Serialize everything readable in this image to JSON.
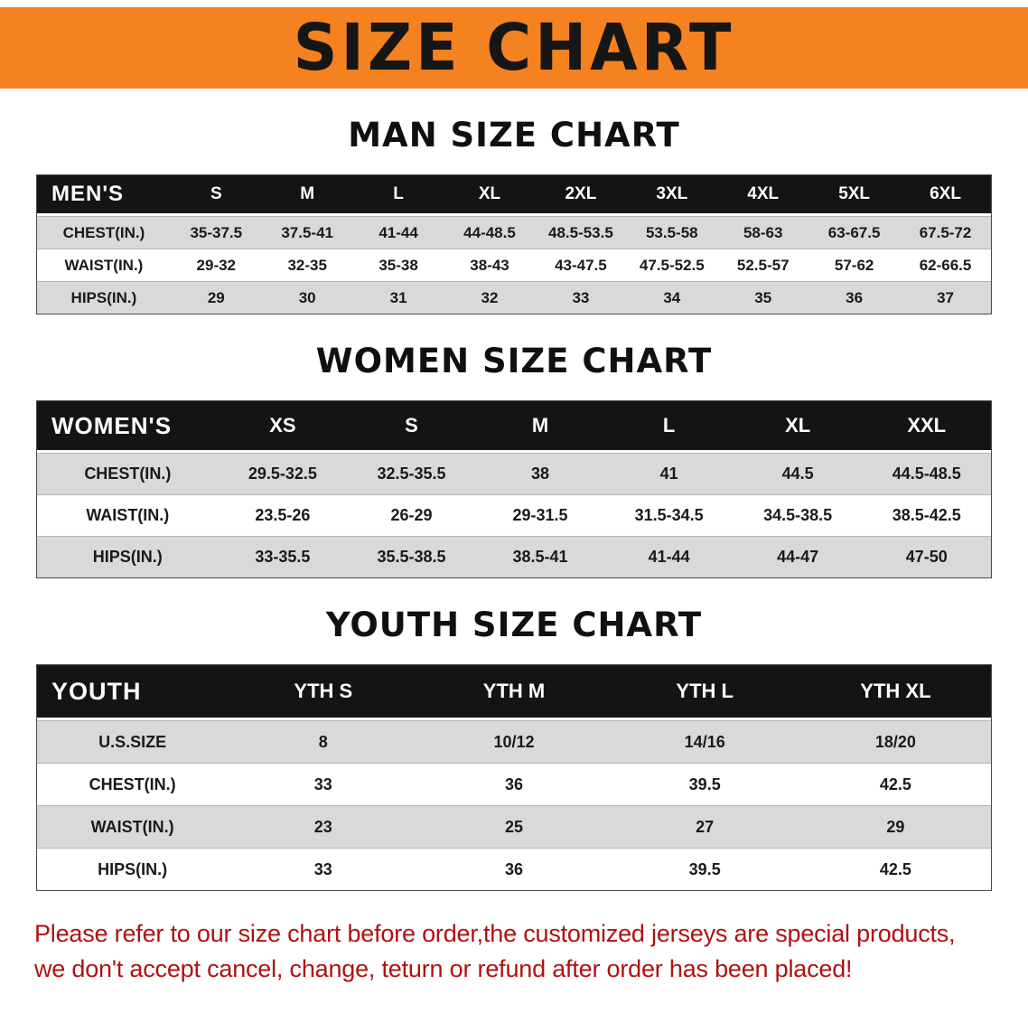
{
  "colors": {
    "banner-orange": "#f58220",
    "banner-text": "#161616",
    "header-bar": "#141414",
    "row-gray": "#d9d9d9",
    "note-red": "#b01111"
  },
  "banner": {
    "title": "SIZE CHART"
  },
  "sections": {
    "men_heading": "MAN SIZE CHART",
    "women_heading": "WOMEN SIZE CHART",
    "youth_heading": "YOUTH SIZE CHART"
  },
  "men_table": {
    "header_label": "MEN'S",
    "columns": [
      "S",
      "M",
      "L",
      "XL",
      "2XL",
      "3XL",
      "4XL",
      "5XL",
      "6XL"
    ],
    "rows": [
      {
        "label": "CHEST(IN.)",
        "values": [
          "35-37.5",
          "37.5-41",
          "41-44",
          "44-48.5",
          "48.5-53.5",
          "53.5-58",
          "58-63",
          "63-67.5",
          "67.5-72"
        ]
      },
      {
        "label": "WAIST(IN.)",
        "values": [
          "29-32",
          "32-35",
          "35-38",
          "38-43",
          "43-47.5",
          "47.5-52.5",
          "52.5-57",
          "57-62",
          "62-66.5"
        ]
      },
      {
        "label": "HIPS(IN.)",
        "values": [
          "29",
          "30",
          "31",
          "32",
          "33",
          "34",
          "35",
          "36",
          "37"
        ]
      }
    ]
  },
  "women_table": {
    "header_label": "WOMEN'S",
    "columns": [
      "XS",
      "S",
      "M",
      "L",
      "XL",
      "XXL"
    ],
    "rows": [
      {
        "label": "CHEST(IN.)",
        "values": [
          "29.5-32.5",
          "32.5-35.5",
          "38",
          "41",
          "44.5",
          "44.5-48.5"
        ]
      },
      {
        "label": "WAIST(IN.)",
        "values": [
          "23.5-26",
          "26-29",
          "29-31.5",
          "31.5-34.5",
          "34.5-38.5",
          "38.5-42.5"
        ]
      },
      {
        "label": "HIPS(IN.)",
        "values": [
          "33-35.5",
          "35.5-38.5",
          "38.5-41",
          "41-44",
          "44-47",
          "47-50"
        ]
      }
    ]
  },
  "youth_table": {
    "header_label": "YOUTH",
    "columns": [
      "YTH S",
      "YTH M",
      "YTH L",
      "YTH XL"
    ],
    "rows": [
      {
        "label": "U.S.SIZE",
        "values": [
          "8",
          "10/12",
          "14/16",
          "18/20"
        ]
      },
      {
        "label": "CHEST(IN.)",
        "values": [
          "33",
          "36",
          "39.5",
          "42.5"
        ]
      },
      {
        "label": "WAIST(IN.)",
        "values": [
          "23",
          "25",
          "27",
          "29"
        ]
      },
      {
        "label": "HIPS(IN.)",
        "values": [
          "33",
          "36",
          "39.5",
          "42.5"
        ]
      }
    ]
  },
  "note": {
    "line1": "Please refer to our size chart before order,the customized jerseys are special products,",
    "line2": "we don't accept cancel, change, teturn or refund after order has been placed!"
  }
}
